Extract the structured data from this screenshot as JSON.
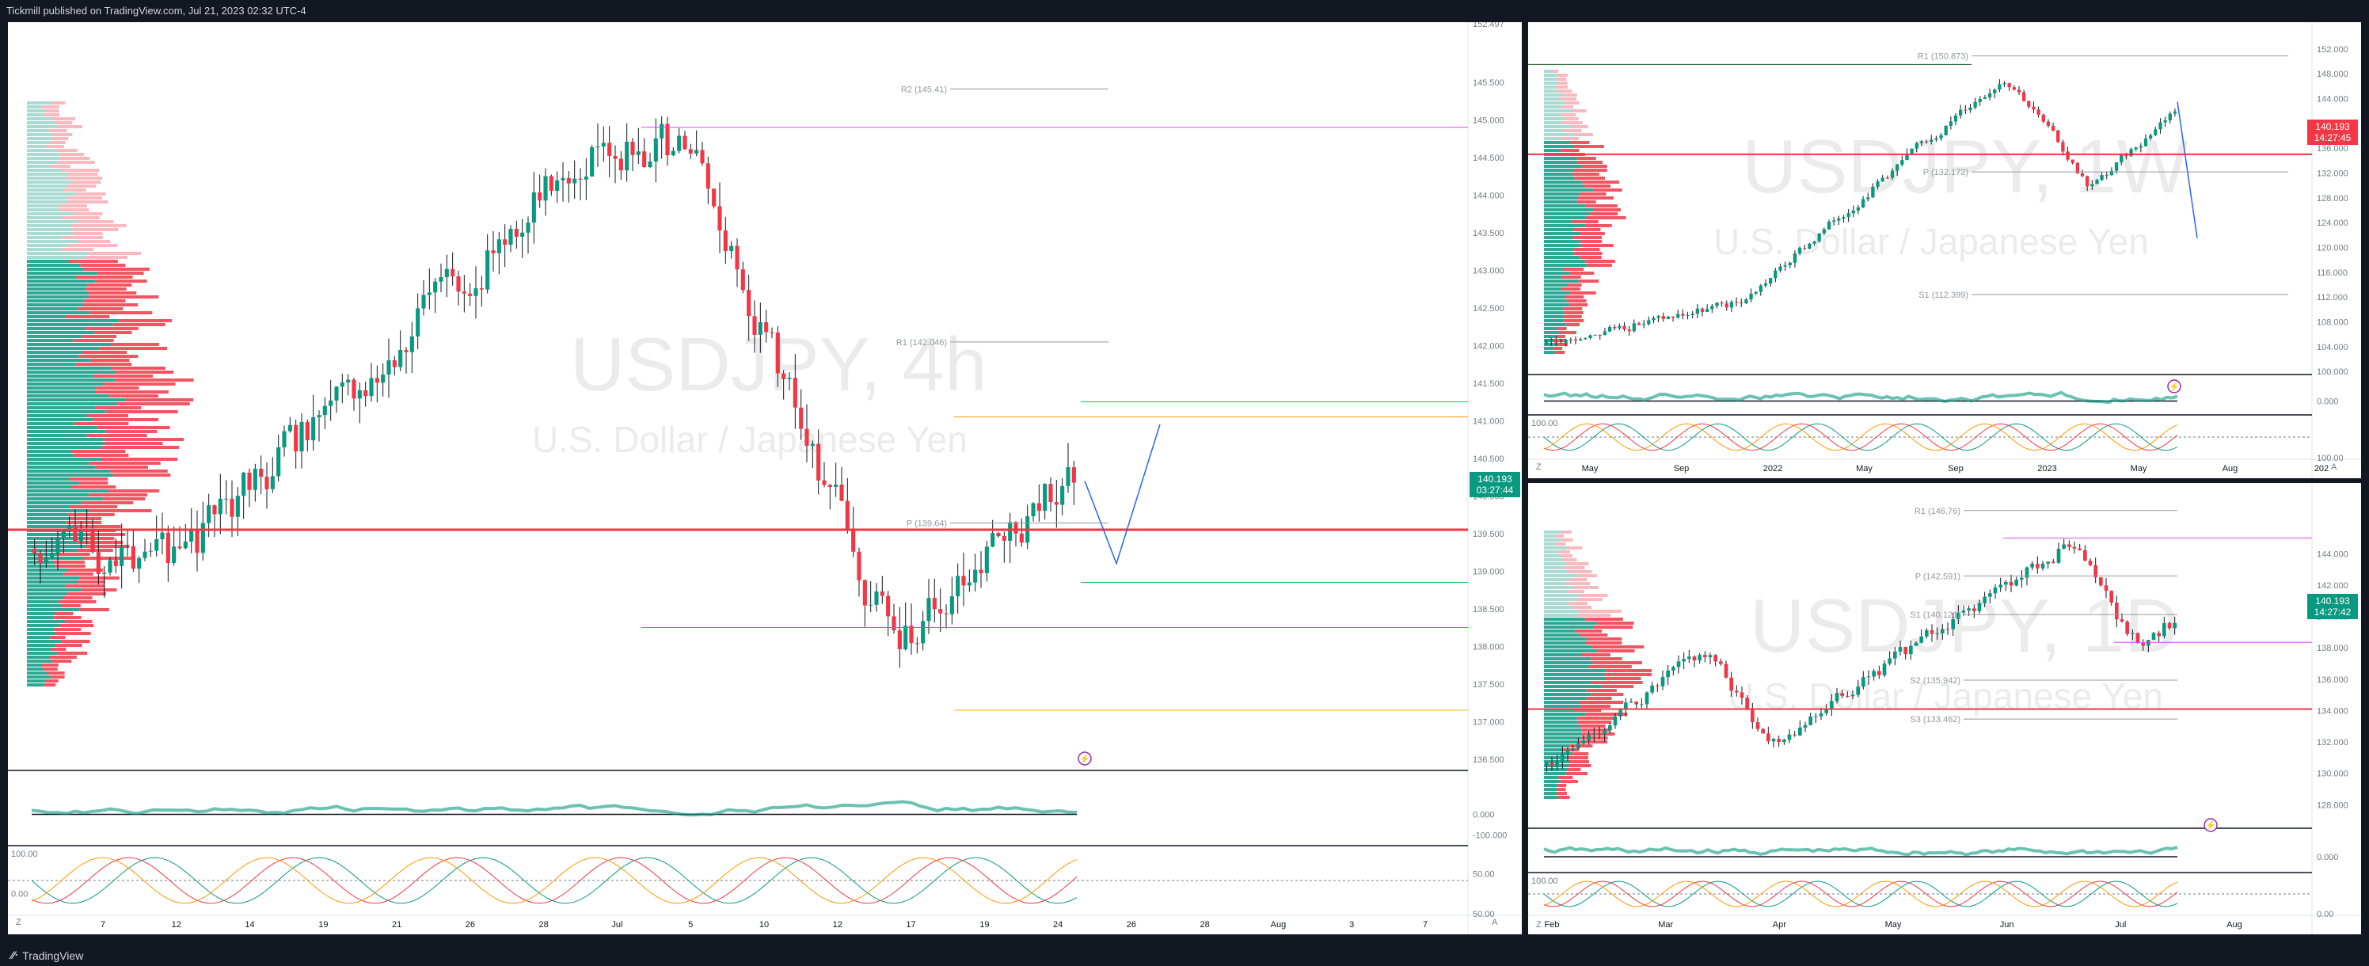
{
  "header": {
    "published": "Tickmill published on TradingView.com, Jul 21, 2023 02:32 UTC-4"
  },
  "footer": {
    "brand": "TradingView",
    "brand_icon": "tradingview-logo-icon"
  },
  "panels": {
    "main": {
      "watermark": {
        "symbol": "USDJPY, 4h",
        "name": "U.S. Dollar / Japanese Yen"
      },
      "price_axis": [
        "145.500",
        "145.000",
        "144.500",
        "144.000",
        "143.500",
        "143.000",
        "142.500",
        "142.000",
        "141.500",
        "141.000",
        "140.500",
        "140.000",
        "139.500",
        "139.000",
        "138.500",
        "138.000",
        "137.500",
        "137.000",
        "136.500"
      ],
      "axis_top": "152.497",
      "price_tag": {
        "price": "140.193",
        "countdown": "03:27:44"
      },
      "pivots": [
        {
          "label": "R2 (145.41)",
          "value": 145.41
        },
        {
          "label": "R1 (142.046)",
          "value": 142.046
        },
        {
          "label": "P (139.64)",
          "value": 139.64
        }
      ],
      "time_axis": [
        "7",
        "12",
        "14",
        "19",
        "21",
        "26",
        "28",
        "Jul",
        "5",
        "10",
        "12",
        "17",
        "19",
        "24",
        "26",
        "28",
        "Aug",
        "3",
        "7"
      ],
      "osc1_axis": [
        "0.000",
        "-100.000"
      ],
      "osc2_axis": [
        "100.00",
        "50.00",
        "0.00",
        "50.00"
      ],
      "corner_left": "Z",
      "corner_right": "A"
    },
    "weekly": {
      "watermark": {
        "symbol": "USDJPY, 1W",
        "name": "U.S. Dollar / Japanese Yen"
      },
      "price_axis": [
        "152.000",
        "148.000",
        "144.000",
        "140.000",
        "136.000",
        "132.000",
        "128.000",
        "124.000",
        "120.000",
        "116.000",
        "112.000",
        "108.000",
        "104.000",
        "100.000"
      ],
      "price_tag": {
        "price": "140.193",
        "countdown": "14:27:45"
      },
      "pivots": [
        {
          "label": "R1 (150.873)",
          "value": 150.873
        },
        {
          "label": "P (132.172)",
          "value": 132.172
        },
        {
          "label": "S1 (112.399)",
          "value": 112.399
        }
      ],
      "time_axis": [
        "May",
        "Sep",
        "2022",
        "May",
        "Sep",
        "2023",
        "May",
        "Aug",
        "202"
      ],
      "osc1_axis": [
        "0.000"
      ],
      "osc2_axis": [
        "100.00",
        "100.00"
      ],
      "corner_left": "Z",
      "corner_right": "A"
    },
    "daily": {
      "watermark": {
        "symbol": "USDJPY, 1D",
        "name": "U.S. Dollar / Japanese Yen"
      },
      "price_axis": [
        "144.000",
        "142.000",
        "140.000",
        "138.000",
        "136.000",
        "134.000",
        "132.000",
        "130.000",
        "128.000"
      ],
      "price_tag": {
        "price": "140.193",
        "countdown": "14:27:42"
      },
      "pivots": [
        {
          "label": "R1 (146.76)",
          "value": 146.76
        },
        {
          "label": "P (142.591)",
          "value": 142.591
        },
        {
          "label": "S1 (140.121)",
          "value": 140.121
        },
        {
          "label": "S2 (135.942)",
          "value": 135.942
        },
        {
          "label": "S3 (133.462)",
          "value": 133.462
        }
      ],
      "time_axis": [
        "Feb",
        "Mar",
        "Apr",
        "May",
        "Jun",
        "Jul",
        "Aug"
      ],
      "osc1_axis": [
        "0.000"
      ],
      "osc2_axis": [
        "100.00",
        "0.00"
      ],
      "corner_left": "Z",
      "corner_right": "A"
    }
  },
  "colors": {
    "up": "#089981",
    "down": "#f23645",
    "background": "#131722",
    "panel": "#ffffff",
    "tag": "#089981",
    "tag_down": "#f23645"
  },
  "icons": [
    "lightning-icon",
    "tradingview-logo-icon"
  ]
}
